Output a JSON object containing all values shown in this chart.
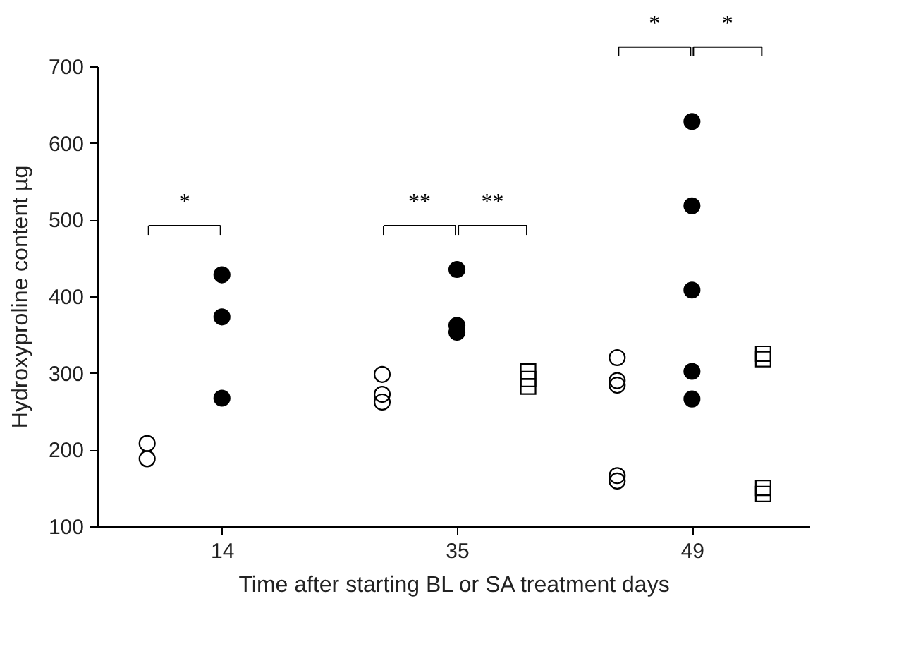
{
  "chart_data": {
    "type": "scatter",
    "xlabel": "Time after starting BL or SA treatment days",
    "ylabel": "Hydroxyproline content  µg",
    "categories": [
      "14",
      "35",
      "49"
    ],
    "ylim": [
      100,
      700
    ],
    "yticks": [
      100,
      200,
      300,
      400,
      500,
      600,
      700
    ],
    "grid": false,
    "series": [
      {
        "color": "#000000",
        "marker": "circle",
        "x": [
          "14",
          "14",
          "35",
          "35",
          "35",
          "49",
          "49",
          "49",
          "49",
          "49"
        ],
        "values": [
          208,
          188,
          298,
          272,
          262,
          320,
          290,
          284,
          166,
          159
        ]
      },
      {
        "color": "#000000",
        "marker": "circle",
        "x": [
          "14",
          "14",
          "14",
          "35",
          "35",
          "35",
          "49",
          "49",
          "49",
          "49",
          "49"
        ],
        "values": [
          428,
          373,
          267,
          435,
          362,
          353,
          628,
          518,
          408,
          302,
          266
        ]
      },
      {
        "color": "#000000",
        "marker": "square",
        "x": [
          "35",
          "35",
          "35",
          "49",
          "49",
          "49",
          "49"
        ],
        "values": [
          302,
          292,
          282,
          325,
          318,
          150,
          142
        ]
      }
    ],
    "annotations": [
      "*",
      "**",
      "**",
      "*",
      "*"
    ]
  }
}
